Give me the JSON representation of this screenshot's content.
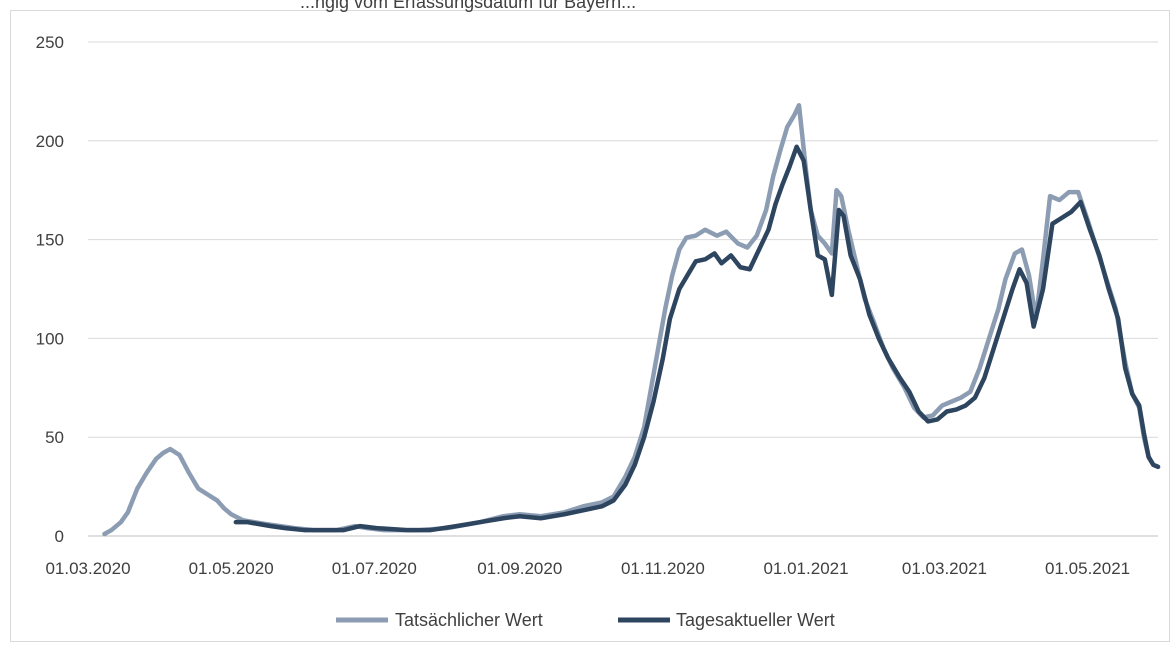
{
  "chart_data": {
    "type": "line",
    "title": "",
    "xlabel": "",
    "ylabel": "",
    "ylim": [
      0,
      250
    ],
    "yticks": [
      0,
      50,
      100,
      150,
      200,
      250
    ],
    "xlim": [
      "2020-03-01",
      "2021-05-31"
    ],
    "xtick_labels": [
      "01.03.2020",
      "01.05.2020",
      "01.07.2020",
      "01.09.2020",
      "01.11.2020",
      "01.01.2021",
      "01.03.2021",
      "01.05.2021"
    ],
    "xtick_dates": [
      "2020-03-01",
      "2020-05-01",
      "2020-07-01",
      "2020-09-01",
      "2020-11-01",
      "2021-01-01",
      "2021-03-01",
      "2021-05-01"
    ],
    "grid": true,
    "legend": "bottom",
    "series": [
      {
        "name": "Tatsächlicher Wert",
        "color": "#8c9db3",
        "points": [
          [
            "2020-03-08",
            1
          ],
          [
            "2020-03-11",
            3
          ],
          [
            "2020-03-15",
            7
          ],
          [
            "2020-03-18",
            12
          ],
          [
            "2020-03-22",
            24
          ],
          [
            "2020-03-26",
            32
          ],
          [
            "2020-03-30",
            39
          ],
          [
            "2020-04-02",
            42
          ],
          [
            "2020-04-05",
            44
          ],
          [
            "2020-04-09",
            41
          ],
          [
            "2020-04-13",
            32
          ],
          [
            "2020-04-17",
            24
          ],
          [
            "2020-04-21",
            21
          ],
          [
            "2020-04-25",
            18
          ],
          [
            "2020-04-28",
            14
          ],
          [
            "2020-05-01",
            11
          ],
          [
            "2020-05-06",
            8
          ],
          [
            "2020-05-11",
            7
          ],
          [
            "2020-05-16",
            6
          ],
          [
            "2020-05-22",
            5
          ],
          [
            "2020-05-28",
            4
          ],
          [
            "2020-06-05",
            3
          ],
          [
            "2020-06-15",
            3
          ],
          [
            "2020-06-23",
            5
          ],
          [
            "2020-06-28",
            4
          ],
          [
            "2020-07-05",
            3
          ],
          [
            "2020-07-20",
            3
          ],
          [
            "2020-08-01",
            4
          ],
          [
            "2020-08-15",
            7
          ],
          [
            "2020-08-25",
            10
          ],
          [
            "2020-09-01",
            11
          ],
          [
            "2020-09-10",
            10
          ],
          [
            "2020-09-20",
            12
          ],
          [
            "2020-09-28",
            15
          ],
          [
            "2020-10-06",
            17
          ],
          [
            "2020-10-11",
            20
          ],
          [
            "2020-10-16",
            30
          ],
          [
            "2020-10-20",
            40
          ],
          [
            "2020-10-24",
            55
          ],
          [
            "2020-10-27",
            75
          ],
          [
            "2020-10-30",
            95
          ],
          [
            "2020-11-02",
            115
          ],
          [
            "2020-11-05",
            132
          ],
          [
            "2020-11-08",
            145
          ],
          [
            "2020-11-11",
            151
          ],
          [
            "2020-11-15",
            152
          ],
          [
            "2020-11-19",
            155
          ],
          [
            "2020-11-24",
            152
          ],
          [
            "2020-11-28",
            154
          ],
          [
            "2020-12-03",
            148
          ],
          [
            "2020-12-07",
            146
          ],
          [
            "2020-12-11",
            152
          ],
          [
            "2020-12-15",
            165
          ],
          [
            "2020-12-18",
            182
          ],
          [
            "2020-12-21",
            195
          ],
          [
            "2020-12-24",
            207
          ],
          [
            "2020-12-27",
            213
          ],
          [
            "2020-12-29",
            218
          ],
          [
            "2021-01-01",
            185
          ],
          [
            "2021-01-03",
            165
          ],
          [
            "2021-01-06",
            152
          ],
          [
            "2021-01-09",
            148
          ],
          [
            "2021-01-12",
            143
          ],
          [
            "2021-01-14",
            175
          ],
          [
            "2021-01-16",
            172
          ],
          [
            "2021-01-19",
            155
          ],
          [
            "2021-01-22",
            140
          ],
          [
            "2021-01-26",
            120
          ],
          [
            "2021-01-30",
            108
          ],
          [
            "2021-02-03",
            95
          ],
          [
            "2021-02-07",
            85
          ],
          [
            "2021-02-12",
            75
          ],
          [
            "2021-02-16",
            65
          ],
          [
            "2021-02-20",
            60
          ],
          [
            "2021-02-24",
            61
          ],
          [
            "2021-02-28",
            66
          ],
          [
            "2021-03-04",
            68
          ],
          [
            "2021-03-08",
            70
          ],
          [
            "2021-03-12",
            73
          ],
          [
            "2021-03-16",
            85
          ],
          [
            "2021-03-20",
            100
          ],
          [
            "2021-03-24",
            115
          ],
          [
            "2021-03-27",
            130
          ],
          [
            "2021-03-31",
            143
          ],
          [
            "2021-04-03",
            145
          ],
          [
            "2021-04-06",
            132
          ],
          [
            "2021-04-09",
            110
          ],
          [
            "2021-04-12",
            140
          ],
          [
            "2021-04-15",
            172
          ],
          [
            "2021-04-19",
            170
          ],
          [
            "2021-04-23",
            174
          ],
          [
            "2021-04-27",
            174
          ],
          [
            "2021-05-01",
            160
          ],
          [
            "2021-05-05",
            145
          ],
          [
            "2021-05-09",
            130
          ],
          [
            "2021-05-13",
            115
          ],
          [
            "2021-05-17",
            88
          ],
          [
            "2021-05-20",
            72
          ],
          [
            "2021-05-23",
            65
          ],
          [
            "2021-05-25",
            50
          ],
          [
            "2021-05-27",
            40
          ],
          [
            "2021-05-29",
            36
          ],
          [
            "2021-05-31",
            35
          ]
        ]
      },
      {
        "name": "Tagesaktueller Wert",
        "color": "#2e4560",
        "points": [
          [
            "2020-05-03",
            7
          ],
          [
            "2020-05-08",
            7
          ],
          [
            "2020-05-13",
            6
          ],
          [
            "2020-05-18",
            5
          ],
          [
            "2020-05-24",
            4
          ],
          [
            "2020-06-01",
            3
          ],
          [
            "2020-06-10",
            3
          ],
          [
            "2020-06-18",
            3
          ],
          [
            "2020-06-25",
            5
          ],
          [
            "2020-07-02",
            4
          ],
          [
            "2020-07-15",
            3
          ],
          [
            "2020-07-25",
            3
          ],
          [
            "2020-08-05",
            5
          ],
          [
            "2020-08-15",
            7
          ],
          [
            "2020-08-25",
            9
          ],
          [
            "2020-09-01",
            10
          ],
          [
            "2020-09-10",
            9
          ],
          [
            "2020-09-20",
            11
          ],
          [
            "2020-09-28",
            13
          ],
          [
            "2020-10-06",
            15
          ],
          [
            "2020-10-11",
            18
          ],
          [
            "2020-10-16",
            26
          ],
          [
            "2020-10-20",
            36
          ],
          [
            "2020-10-24",
            50
          ],
          [
            "2020-10-28",
            68
          ],
          [
            "2020-11-01",
            90
          ],
          [
            "2020-11-04",
            110
          ],
          [
            "2020-11-08",
            125
          ],
          [
            "2020-11-12",
            133
          ],
          [
            "2020-11-15",
            139
          ],
          [
            "2020-11-19",
            140
          ],
          [
            "2020-11-23",
            143
          ],
          [
            "2020-11-26",
            138
          ],
          [
            "2020-11-30",
            142
          ],
          [
            "2020-12-04",
            136
          ],
          [
            "2020-12-08",
            135
          ],
          [
            "2020-12-12",
            145
          ],
          [
            "2020-12-16",
            155
          ],
          [
            "2020-12-19",
            168
          ],
          [
            "2020-12-22",
            178
          ],
          [
            "2020-12-25",
            187
          ],
          [
            "2020-12-28",
            197
          ],
          [
            "2020-12-31",
            190
          ],
          [
            "2021-01-03",
            165
          ],
          [
            "2021-01-06",
            142
          ],
          [
            "2021-01-09",
            140
          ],
          [
            "2021-01-12",
            122
          ],
          [
            "2021-01-15",
            165
          ],
          [
            "2021-01-17",
            162
          ],
          [
            "2021-01-20",
            142
          ],
          [
            "2021-01-24",
            130
          ],
          [
            "2021-01-28",
            112
          ],
          [
            "2021-02-01",
            100
          ],
          [
            "2021-02-05",
            90
          ],
          [
            "2021-02-10",
            80
          ],
          [
            "2021-02-14",
            73
          ],
          [
            "2021-02-18",
            63
          ],
          [
            "2021-02-22",
            58
          ],
          [
            "2021-02-26",
            59
          ],
          [
            "2021-03-02",
            63
          ],
          [
            "2021-03-06",
            64
          ],
          [
            "2021-03-10",
            66
          ],
          [
            "2021-03-14",
            70
          ],
          [
            "2021-03-18",
            80
          ],
          [
            "2021-03-22",
            95
          ],
          [
            "2021-03-26",
            110
          ],
          [
            "2021-03-30",
            125
          ],
          [
            "2021-04-02",
            135
          ],
          [
            "2021-04-05",
            128
          ],
          [
            "2021-04-08",
            106
          ],
          [
            "2021-04-12",
            125
          ],
          [
            "2021-04-16",
            158
          ],
          [
            "2021-04-20",
            161
          ],
          [
            "2021-04-24",
            164
          ],
          [
            "2021-04-28",
            169
          ],
          [
            "2021-05-02",
            155
          ],
          [
            "2021-05-06",
            142
          ],
          [
            "2021-05-10",
            125
          ],
          [
            "2021-05-14",
            110
          ],
          [
            "2021-05-17",
            85
          ],
          [
            "2021-05-20",
            72
          ],
          [
            "2021-05-23",
            66
          ],
          [
            "2021-05-25",
            52
          ],
          [
            "2021-05-27",
            40
          ],
          [
            "2021-05-29",
            36
          ],
          [
            "2021-05-31",
            35
          ]
        ]
      }
    ]
  },
  "header": {
    "title_fragment": "...ngig vom Erfassungsdatum für Bayern..."
  }
}
